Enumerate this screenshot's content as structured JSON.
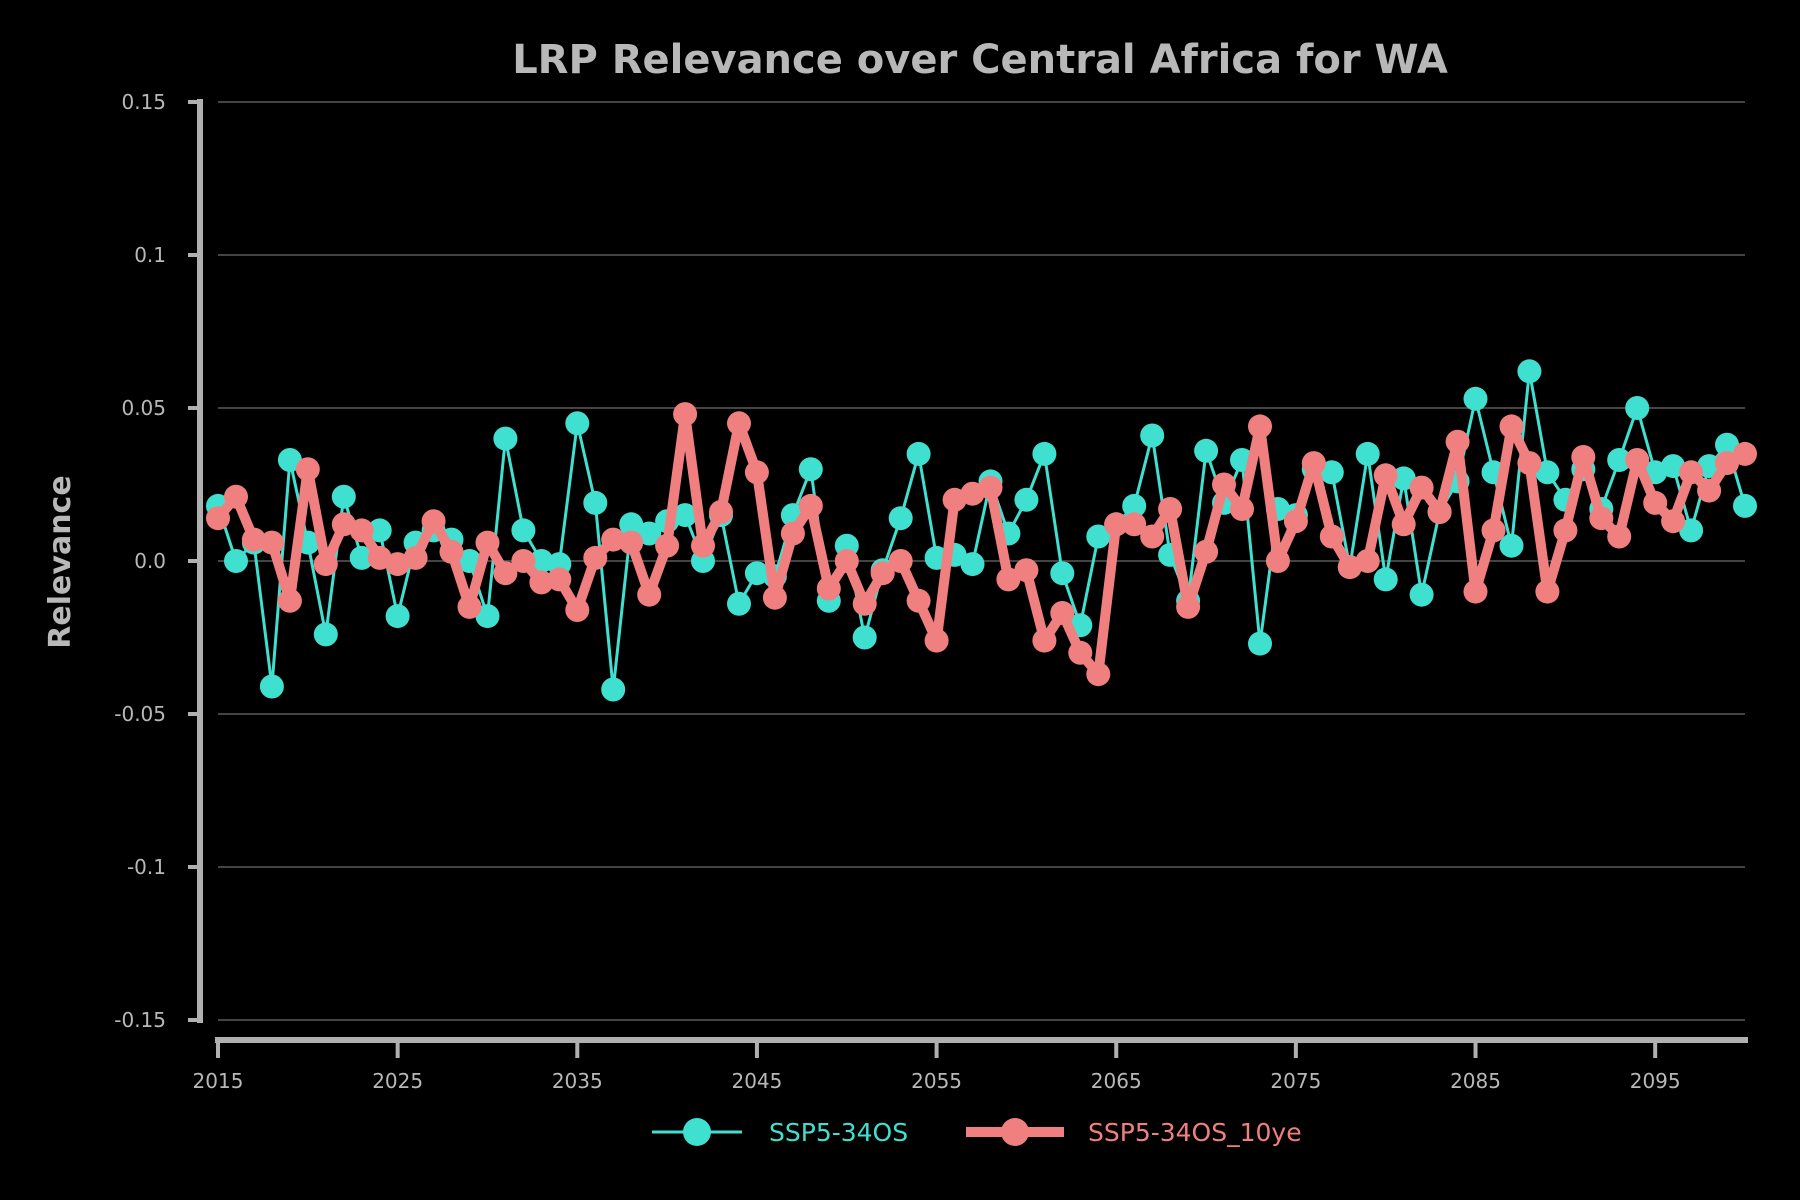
{
  "chart_data": {
    "type": "line",
    "title": "LRP Relevance over Central Africa for WA",
    "xlabel": "",
    "ylabel": "Relevance",
    "xlim": [
      2015,
      2100
    ],
    "ylim": [
      -0.15,
      0.15
    ],
    "x_ticks": [
      2015,
      2025,
      2035,
      2045,
      2055,
      2065,
      2075,
      2085,
      2095
    ],
    "x_tick_labels": [
      "2015",
      "2025",
      "2035",
      "2045",
      "2055",
      "2065",
      "2075",
      "2085",
      "2095"
    ],
    "y_ticks": [
      0.15,
      0.1,
      0.05,
      0.0,
      -0.05,
      -0.1,
      -0.15
    ],
    "y_tick_labels": [
      "0.15",
      "0.1",
      "0.05",
      "0.0",
      "-0.05",
      "-0.1",
      "-0.15"
    ],
    "grid": true,
    "legend_position": "bottom-center",
    "x": [
      2015,
      2016,
      2017,
      2018,
      2019,
      2020,
      2021,
      2022,
      2023,
      2024,
      2025,
      2026,
      2027,
      2028,
      2029,
      2030,
      2031,
      2032,
      2033,
      2034,
      2035,
      2036,
      2037,
      2038,
      2039,
      2040,
      2041,
      2042,
      2043,
      2044,
      2045,
      2046,
      2047,
      2048,
      2049,
      2050,
      2051,
      2052,
      2053,
      2054,
      2055,
      2056,
      2057,
      2058,
      2059,
      2060,
      2061,
      2062,
      2063,
      2064,
      2065,
      2066,
      2067,
      2068,
      2069,
      2070,
      2071,
      2072,
      2073,
      2074,
      2075,
      2076,
      2077,
      2078,
      2079,
      2080,
      2081,
      2082,
      2083,
      2084,
      2085,
      2086,
      2087,
      2088,
      2089,
      2090,
      2091,
      2092,
      2093,
      2094,
      2095,
      2096,
      2097,
      2098,
      2099,
      2100
    ],
    "series": [
      {
        "name": "SSP5-34OS",
        "color": "#40e0d0",
        "values": [
          0.018,
          0.0,
          0.006,
          -0.041,
          0.033,
          0.006,
          -0.024,
          0.021,
          0.001,
          0.01,
          -0.018,
          0.006,
          0.01,
          0.007,
          0.0,
          -0.018,
          0.04,
          0.01,
          0.0,
          -0.001,
          0.045,
          0.019,
          -0.042,
          0.012,
          0.009,
          0.013,
          0.015,
          0.0,
          0.015,
          -0.014,
          -0.004,
          -0.005,
          0.015,
          0.03,
          -0.013,
          0.005,
          -0.025,
          -0.003,
          0.014,
          0.035,
          0.001,
          0.002,
          -0.001,
          0.026,
          0.009,
          0.02,
          0.035,
          -0.004,
          -0.021,
          0.008,
          0.012,
          0.018,
          0.041,
          0.002,
          -0.013,
          0.036,
          0.019,
          0.033,
          -0.027,
          0.017,
          0.015,
          0.03,
          0.029,
          -0.002,
          0.035,
          -0.006,
          0.027,
          -0.011,
          0.016,
          0.026,
          0.053,
          0.029,
          0.005,
          0.062,
          0.029,
          0.02,
          0.03,
          0.017,
          0.033,
          0.05,
          0.029,
          0.031,
          0.01,
          0.031,
          0.038,
          0.018
        ]
      },
      {
        "name": "SSP5-34OS_10ye",
        "color": "#f08080",
        "values": [
          0.014,
          0.021,
          0.007,
          0.006,
          -0.013,
          0.03,
          -0.001,
          0.012,
          0.01,
          0.001,
          -0.001,
          0.001,
          0.013,
          0.003,
          -0.015,
          0.006,
          -0.004,
          0.0,
          -0.007,
          -0.006,
          -0.016,
          0.001,
          0.007,
          0.006,
          -0.011,
          0.005,
          0.048,
          0.005,
          0.016,
          0.045,
          0.029,
          -0.012,
          0.009,
          0.018,
          -0.009,
          0.0,
          -0.014,
          -0.004,
          0.0,
          -0.013,
          -0.026,
          0.02,
          0.022,
          0.024,
          -0.006,
          -0.003,
          -0.026,
          -0.017,
          -0.03,
          -0.037,
          0.012,
          0.012,
          0.008,
          0.017,
          -0.015,
          0.003,
          0.025,
          0.017,
          0.044,
          0.0,
          0.013,
          0.032,
          0.008,
          -0.002,
          0.0,
          0.028,
          0.012,
          0.024,
          0.016,
          0.039,
          -0.01,
          0.01,
          0.044,
          0.032,
          -0.01,
          0.01,
          0.034,
          0.014,
          0.008,
          0.033,
          0.019,
          0.013,
          0.029,
          0.023,
          0.032,
          0.035
        ]
      }
    ]
  }
}
